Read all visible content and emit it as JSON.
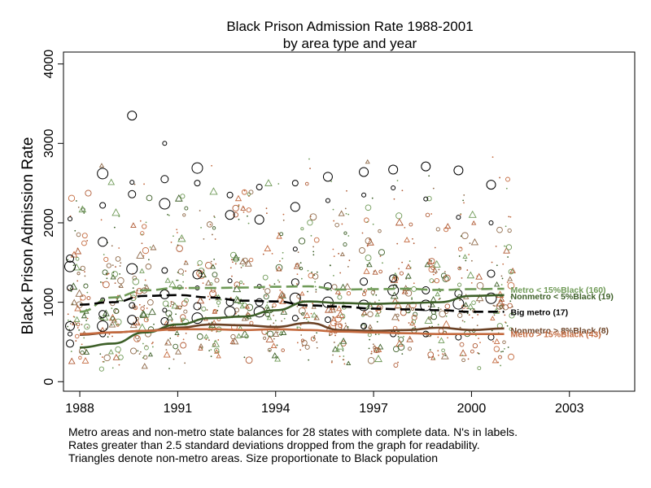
{
  "title_line1": "Black Prison Admission Rate 1988-2001",
  "title_line2": "by area type and year",
  "ylabel": "Black Prison Admission Rate",
  "footnote": [
    "Metro areas and non-metro state balances for 28 states with complete data. N's in labels.",
    "Rates greater than 2.5 standard deviations dropped from the graph for readability.",
    "Triangles denote non-metro areas. Size proportionate to Black population"
  ],
  "chart_data": {
    "type": "scatter",
    "xlim": [
      1987.5,
      2005
    ],
    "ylim": [
      -120,
      4150
    ],
    "xticks": [
      "1988",
      "1991",
      "1994",
      "1997",
      "2000",
      "2003"
    ],
    "yticks": [
      "0",
      "1000",
      "2000",
      "3000",
      "4000"
    ],
    "grid": false,
    "x": [
      1988,
      1989,
      1990,
      1991,
      1992,
      1993,
      1994,
      1995,
      1996,
      1997,
      1998,
      1999,
      2000,
      2001
    ],
    "series": [
      {
        "name": "Metro < 15%Black (160)",
        "color": "#6f9a57",
        "dash": "14,6",
        "values": [
          880,
          1060,
          1150,
          1180,
          1180,
          1185,
          1195,
          1200,
          1160,
          1165,
          1170,
          1155,
          1165,
          1170
        ]
      },
      {
        "name": "Nonmetro < 5%Black (19)",
        "color": "#3d5f28",
        "dash": "",
        "values": [
          430,
          480,
          620,
          720,
          800,
          820,
          900,
          1010,
          990,
          980,
          990,
          1000,
          1080,
          1090
        ]
      },
      {
        "name": "Big metro  (17)",
        "color": "#000000",
        "dash": "12,6",
        "values": [
          970,
          1000,
          1080,
          1090,
          1060,
          1020,
          1010,
          960,
          945,
          920,
          910,
          900,
          880,
          880
        ]
      },
      {
        "name": "Nonmetro > 8%Black (8)",
        "color": "#6b4226",
        "dash": "",
        "values": [
          590,
          620,
          640,
          680,
          720,
          710,
          690,
          740,
          650,
          640,
          650,
          680,
          650,
          670
        ]
      },
      {
        "name": "Metro > 15%Black (43)",
        "color": "#c46a3f",
        "dash": "",
        "values": [
          600,
          620,
          640,
          660,
          660,
          650,
          660,
          650,
          630,
          620,
          610,
          600,
          600,
          600
        ]
      }
    ],
    "big_metro_points": [
      {
        "x": 1987.7,
        "y": 2050
      },
      {
        "x": 1987.7,
        "y": 1550
      },
      {
        "x": 1987.7,
        "y": 1450
      },
      {
        "x": 1987.7,
        "y": 1180
      },
      {
        "x": 1987.7,
        "y": 700
      },
      {
        "x": 1987.7,
        "y": 600
      },
      {
        "x": 1987.7,
        "y": 480
      },
      {
        "x": 1988.7,
        "y": 2620
      },
      {
        "x": 1988.7,
        "y": 2220
      },
      {
        "x": 1988.7,
        "y": 1760
      },
      {
        "x": 1988.7,
        "y": 1030
      },
      {
        "x": 1988.7,
        "y": 850
      },
      {
        "x": 1988.7,
        "y": 700
      },
      {
        "x": 1988.7,
        "y": 600
      },
      {
        "x": 1989.6,
        "y": 3350
      },
      {
        "x": 1989.6,
        "y": 2510
      },
      {
        "x": 1989.6,
        "y": 2360
      },
      {
        "x": 1989.6,
        "y": 1420
      },
      {
        "x": 1989.6,
        "y": 960
      },
      {
        "x": 1989.6,
        "y": 780
      },
      {
        "x": 1990.6,
        "y": 3000
      },
      {
        "x": 1990.6,
        "y": 2550
      },
      {
        "x": 1990.6,
        "y": 2240
      },
      {
        "x": 1990.6,
        "y": 1400
      },
      {
        "x": 1990.6,
        "y": 1100
      },
      {
        "x": 1990.6,
        "y": 900
      },
      {
        "x": 1990.6,
        "y": 760
      },
      {
        "x": 1991.6,
        "y": 2690
      },
      {
        "x": 1991.6,
        "y": 2500
      },
      {
        "x": 1991.6,
        "y": 1350
      },
      {
        "x": 1991.6,
        "y": 1180
      },
      {
        "x": 1991.6,
        "y": 950
      },
      {
        "x": 1991.6,
        "y": 800
      },
      {
        "x": 1992.6,
        "y": 2350
      },
      {
        "x": 1992.6,
        "y": 2100
      },
      {
        "x": 1992.6,
        "y": 1270
      },
      {
        "x": 1992.6,
        "y": 1000
      },
      {
        "x": 1992.6,
        "y": 880
      },
      {
        "x": 1993.5,
        "y": 2450
      },
      {
        "x": 1993.5,
        "y": 2040
      },
      {
        "x": 1993.5,
        "y": 1200
      },
      {
        "x": 1993.5,
        "y": 1000
      },
      {
        "x": 1993.5,
        "y": 880
      },
      {
        "x": 1994.6,
        "y": 2500
      },
      {
        "x": 1994.6,
        "y": 2200
      },
      {
        "x": 1994.6,
        "y": 1670
      },
      {
        "x": 1994.6,
        "y": 1250
      },
      {
        "x": 1994.6,
        "y": 1050
      },
      {
        "x": 1994.6,
        "y": 800
      },
      {
        "x": 1995.6,
        "y": 2580
      },
      {
        "x": 1995.6,
        "y": 2280
      },
      {
        "x": 1995.6,
        "y": 1200
      },
      {
        "x": 1995.6,
        "y": 1000
      },
      {
        "x": 1995.6,
        "y": 780
      },
      {
        "x": 1996.7,
        "y": 2640
      },
      {
        "x": 1996.7,
        "y": 2350
      },
      {
        "x": 1996.7,
        "y": 1260
      },
      {
        "x": 1996.7,
        "y": 960
      },
      {
        "x": 1996.7,
        "y": 700
      },
      {
        "x": 1997.6,
        "y": 2670
      },
      {
        "x": 1997.6,
        "y": 2440
      },
      {
        "x": 1997.6,
        "y": 1300
      },
      {
        "x": 1997.6,
        "y": 1150
      },
      {
        "x": 1997.6,
        "y": 600
      },
      {
        "x": 1998.6,
        "y": 2710
      },
      {
        "x": 1998.6,
        "y": 2300
      },
      {
        "x": 1998.6,
        "y": 1150
      },
      {
        "x": 1998.6,
        "y": 960
      },
      {
        "x": 1998.6,
        "y": 600
      },
      {
        "x": 1999.6,
        "y": 2660
      },
      {
        "x": 1999.6,
        "y": 2070
      },
      {
        "x": 1999.6,
        "y": 1110
      },
      {
        "x": 1999.6,
        "y": 980
      },
      {
        "x": 1999.6,
        "y": 560
      },
      {
        "x": 2000.6,
        "y": 2480
      },
      {
        "x": 2000.6,
        "y": 2000
      },
      {
        "x": 2000.6,
        "y": 1360
      },
      {
        "x": 2000.6,
        "y": 1050
      },
      {
        "x": 2000.6,
        "y": 560
      }
    ]
  }
}
